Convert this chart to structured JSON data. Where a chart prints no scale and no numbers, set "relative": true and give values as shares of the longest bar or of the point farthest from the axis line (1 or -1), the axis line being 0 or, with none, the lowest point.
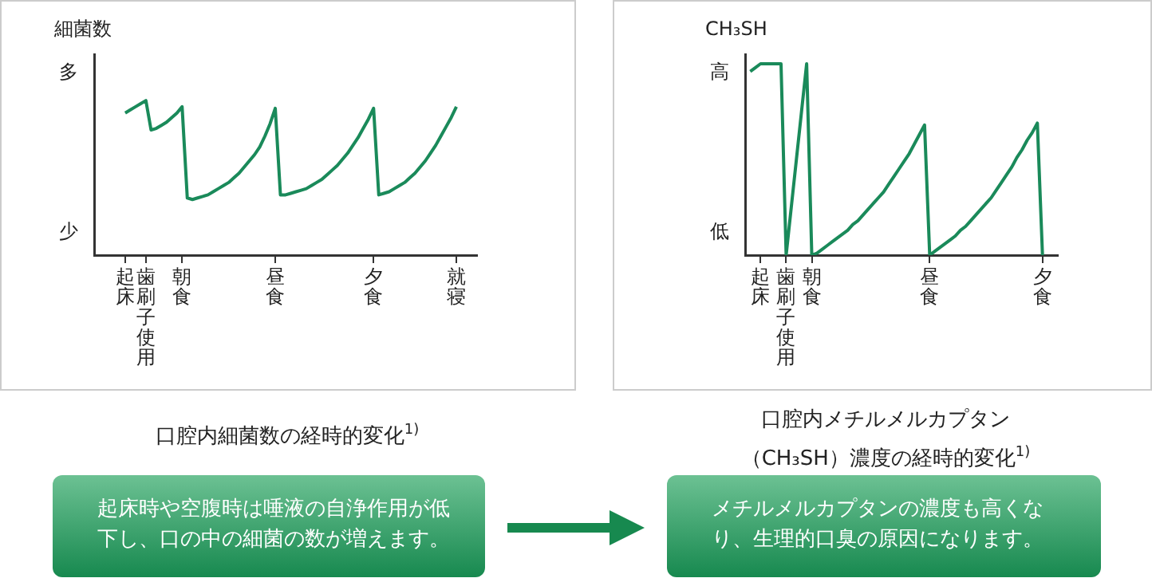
{
  "chart_data": [
    {
      "type": "line",
      "title": "口腔内細菌数の経時的変化$^{1)}$",
      "ylabel": "細菌数",
      "relative": true,
      "color": "#1a8a5a",
      "marker": "none",
      "line_style": "solid",
      "categories": [
        null,
        null,
        null,
        null,
        null,
        null,
        "起床",
        null,
        null,
        null,
        "歯刷子使用",
        null,
        null,
        null,
        null,
        null,
        null,
        "朝食",
        null,
        null,
        null,
        null,
        null,
        null,
        null,
        null,
        null,
        null,
        null,
        null,
        null,
        null,
        null,
        null,
        null,
        "昼食",
        null,
        null,
        null,
        null,
        null,
        null,
        null,
        null,
        null,
        null,
        null,
        null,
        null,
        null,
        null,
        null,
        null,
        null,
        "夕食",
        null,
        null,
        null,
        null,
        null,
        null,
        null,
        null,
        null,
        null,
        null,
        null,
        null,
        null,
        null,
        "就寝",
        null,
        null,
        null,
        null
      ],
      "values": [
        null,
        null,
        null,
        null,
        null,
        null,
        0.92,
        0.94,
        0.96,
        0.98,
        1,
        0.81,
        0.82,
        0.84,
        0.86,
        0.89,
        0.92,
        0.96,
        0.37,
        0.36,
        0.37,
        0.38,
        0.39,
        0.41,
        0.43,
        0.45,
        0.47,
        0.5,
        0.53,
        0.57,
        0.61,
        0.65,
        0.7,
        0.77,
        0.85,
        0.95,
        0.39,
        0.39,
        0.4,
        0.41,
        0.42,
        0.43,
        0.45,
        0.47,
        0.49,
        0.52,
        0.55,
        0.58,
        0.62,
        0.66,
        0.71,
        0.76,
        0.82,
        0.88,
        0.95,
        0.39,
        0.4,
        0.41,
        0.43,
        0.45,
        0.47,
        0.5,
        0.53,
        0.57,
        0.61,
        0.66,
        0.71,
        0.77,
        0.83,
        0.89,
        0.96,
        null,
        null,
        null,
        null
      ],
      "annotations": [
        "多",
        "少",
        "起床時や空腹時は唾液の自浄作用が低下し、口の中の細菌の数が増えます。"
      ]
    },
    {
      "type": "line",
      "title": "口腔内メチルメルカプタン（CH₃SH）濃度の経時的変化$^{1)}$",
      "ylabel": "CH₃SH",
      "relative": true,
      "color": "#1a8a5a",
      "marker": "none",
      "line_style": "solid",
      "categories": [
        null,
        null,
        null,
        "起床",
        null,
        null,
        null,
        null,
        "歯刷子使用",
        null,
        null,
        null,
        null,
        "朝食",
        null,
        null,
        null,
        null,
        null,
        null,
        null,
        null,
        null,
        null,
        null,
        null,
        null,
        null,
        null,
        null,
        null,
        null,
        null,
        null,
        null,
        null,
        "昼食",
        null,
        null,
        null,
        null,
        null,
        null,
        null,
        null,
        null,
        null,
        null,
        null,
        null,
        null,
        null,
        null,
        null,
        null,
        null,
        null,
        null,
        "夕食",
        null,
        null,
        null
      ],
      "values": [
        null,
        0.96,
        0.98,
        1,
        1,
        1,
        1,
        1,
        0,
        0.25,
        0.5,
        0.75,
        1,
        0,
        0.01,
        0.03,
        0.05,
        0.07,
        0.09,
        0.11,
        0.13,
        0.16,
        0.18,
        0.21,
        0.24,
        0.27,
        0.3,
        0.33,
        0.37,
        0.41,
        0.45,
        0.49,
        0.53,
        0.58,
        0.63,
        0.68,
        0,
        0.02,
        0.04,
        0.06,
        0.08,
        0.1,
        0.13,
        0.15,
        0.18,
        0.21,
        0.24,
        0.27,
        0.3,
        0.34,
        0.38,
        0.42,
        0.46,
        0.51,
        0.55,
        0.6,
        0.64,
        0.69,
        0,
        null,
        null,
        null
      ],
      "annotations": [
        "高",
        "低",
        "メチルメルカプタンの濃度も高くなり、生理的口臭の原因になります。"
      ]
    }
  ]
}
